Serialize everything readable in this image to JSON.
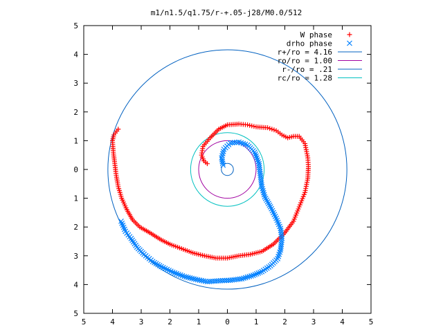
{
  "chart_data": {
    "type": "scatter",
    "title": "m1/n1.5/q1.75/r-+.05-j28/M0.0/512",
    "xlim": [
      -5,
      5
    ],
    "ylim": [
      -5,
      5
    ],
    "x_tick_labels": [
      "5",
      "4",
      "3",
      "2",
      "1",
      "0",
      "1",
      "2",
      "3",
      "4",
      "5"
    ],
    "y_tick_labels": [
      "5",
      "4",
      "3",
      "2",
      "1",
      "0",
      "1",
      "2",
      "3",
      "4",
      "5"
    ],
    "grid": false,
    "legend_position": "top-right",
    "series": [
      {
        "name": "W phase",
        "marker": "plus",
        "color": "#ff0000",
        "points": [
          [
            -3.8,
            1.4
          ],
          [
            -3.95,
            1.2
          ],
          [
            -4.0,
            1.0
          ],
          [
            -3.97,
            0.6
          ],
          [
            -3.92,
            0.2
          ],
          [
            -3.87,
            -0.2
          ],
          [
            -3.8,
            -0.6
          ],
          [
            -3.68,
            -1.0
          ],
          [
            -3.5,
            -1.4
          ],
          [
            -3.3,
            -1.75
          ],
          [
            -3.05,
            -2.0
          ],
          [
            -2.7,
            -2.2
          ],
          [
            -2.3,
            -2.45
          ],
          [
            -2.0,
            -2.6
          ],
          [
            -1.6,
            -2.75
          ],
          [
            -1.2,
            -2.9
          ],
          [
            -0.8,
            -3.0
          ],
          [
            -0.4,
            -3.08
          ],
          [
            0.0,
            -3.08
          ],
          [
            0.4,
            -3.0
          ],
          [
            0.8,
            -2.95
          ],
          [
            1.2,
            -2.85
          ],
          [
            1.6,
            -2.6
          ],
          [
            2.0,
            -2.2
          ],
          [
            2.3,
            -1.8
          ],
          [
            2.5,
            -1.3
          ],
          [
            2.7,
            -0.8
          ],
          [
            2.8,
            -0.3
          ],
          [
            2.82,
            0.1
          ],
          [
            2.8,
            0.4
          ],
          [
            2.7,
            0.9
          ],
          [
            2.5,
            1.15
          ],
          [
            2.3,
            1.15
          ],
          [
            2.1,
            1.1
          ],
          [
            1.9,
            1.2
          ],
          [
            1.7,
            1.35
          ],
          [
            1.4,
            1.45
          ],
          [
            1.0,
            1.48
          ],
          [
            0.7,
            1.55
          ],
          [
            0.4,
            1.58
          ],
          [
            0.0,
            1.55
          ],
          [
            -0.3,
            1.4
          ],
          [
            -0.6,
            1.1
          ],
          [
            -0.85,
            0.8
          ],
          [
            -0.9,
            0.5
          ],
          [
            -0.82,
            0.3
          ],
          [
            -0.7,
            0.2
          ]
        ]
      },
      {
        "name": "drho phase",
        "marker": "cross",
        "color": "#0080ff",
        "points": [
          [
            -0.15,
            0.15
          ],
          [
            -0.2,
            0.4
          ],
          [
            -0.12,
            0.7
          ],
          [
            0.1,
            0.92
          ],
          [
            0.4,
            0.95
          ],
          [
            0.7,
            0.85
          ],
          [
            0.95,
            0.6
          ],
          [
            1.1,
            0.2
          ],
          [
            1.15,
            -0.2
          ],
          [
            1.2,
            -0.6
          ],
          [
            1.3,
            -0.95
          ],
          [
            1.5,
            -1.3
          ],
          [
            1.7,
            -1.7
          ],
          [
            1.85,
            -2.05
          ],
          [
            1.9,
            -2.4
          ],
          [
            1.85,
            -2.8
          ],
          [
            1.75,
            -3.1
          ],
          [
            1.5,
            -3.35
          ],
          [
            1.2,
            -3.55
          ],
          [
            0.9,
            -3.68
          ],
          [
            0.5,
            -3.8
          ],
          [
            0.1,
            -3.85
          ],
          [
            -0.3,
            -3.87
          ],
          [
            -0.7,
            -3.9
          ],
          [
            -1.1,
            -3.82
          ],
          [
            -1.5,
            -3.72
          ],
          [
            -1.9,
            -3.57
          ],
          [
            -2.3,
            -3.38
          ],
          [
            -2.6,
            -3.2
          ],
          [
            -2.9,
            -2.95
          ],
          [
            -3.15,
            -2.7
          ],
          [
            -3.35,
            -2.4
          ],
          [
            -3.55,
            -2.15
          ],
          [
            -3.7,
            -1.8
          ]
        ]
      }
    ],
    "circles": [
      {
        "name": "r+/ro = 4.16",
        "radius": 4.16,
        "color": "#0060c0"
      },
      {
        "name": "ro/ro = 1.00",
        "radius": 1.0,
        "color": "#a000a0"
      },
      {
        "name": "r-/ro = .21",
        "radius": 0.21,
        "color": "#0060c0"
      },
      {
        "name": "rc/ro = 1.28",
        "radius": 1.28,
        "color": "#00c0c0"
      }
    ]
  }
}
